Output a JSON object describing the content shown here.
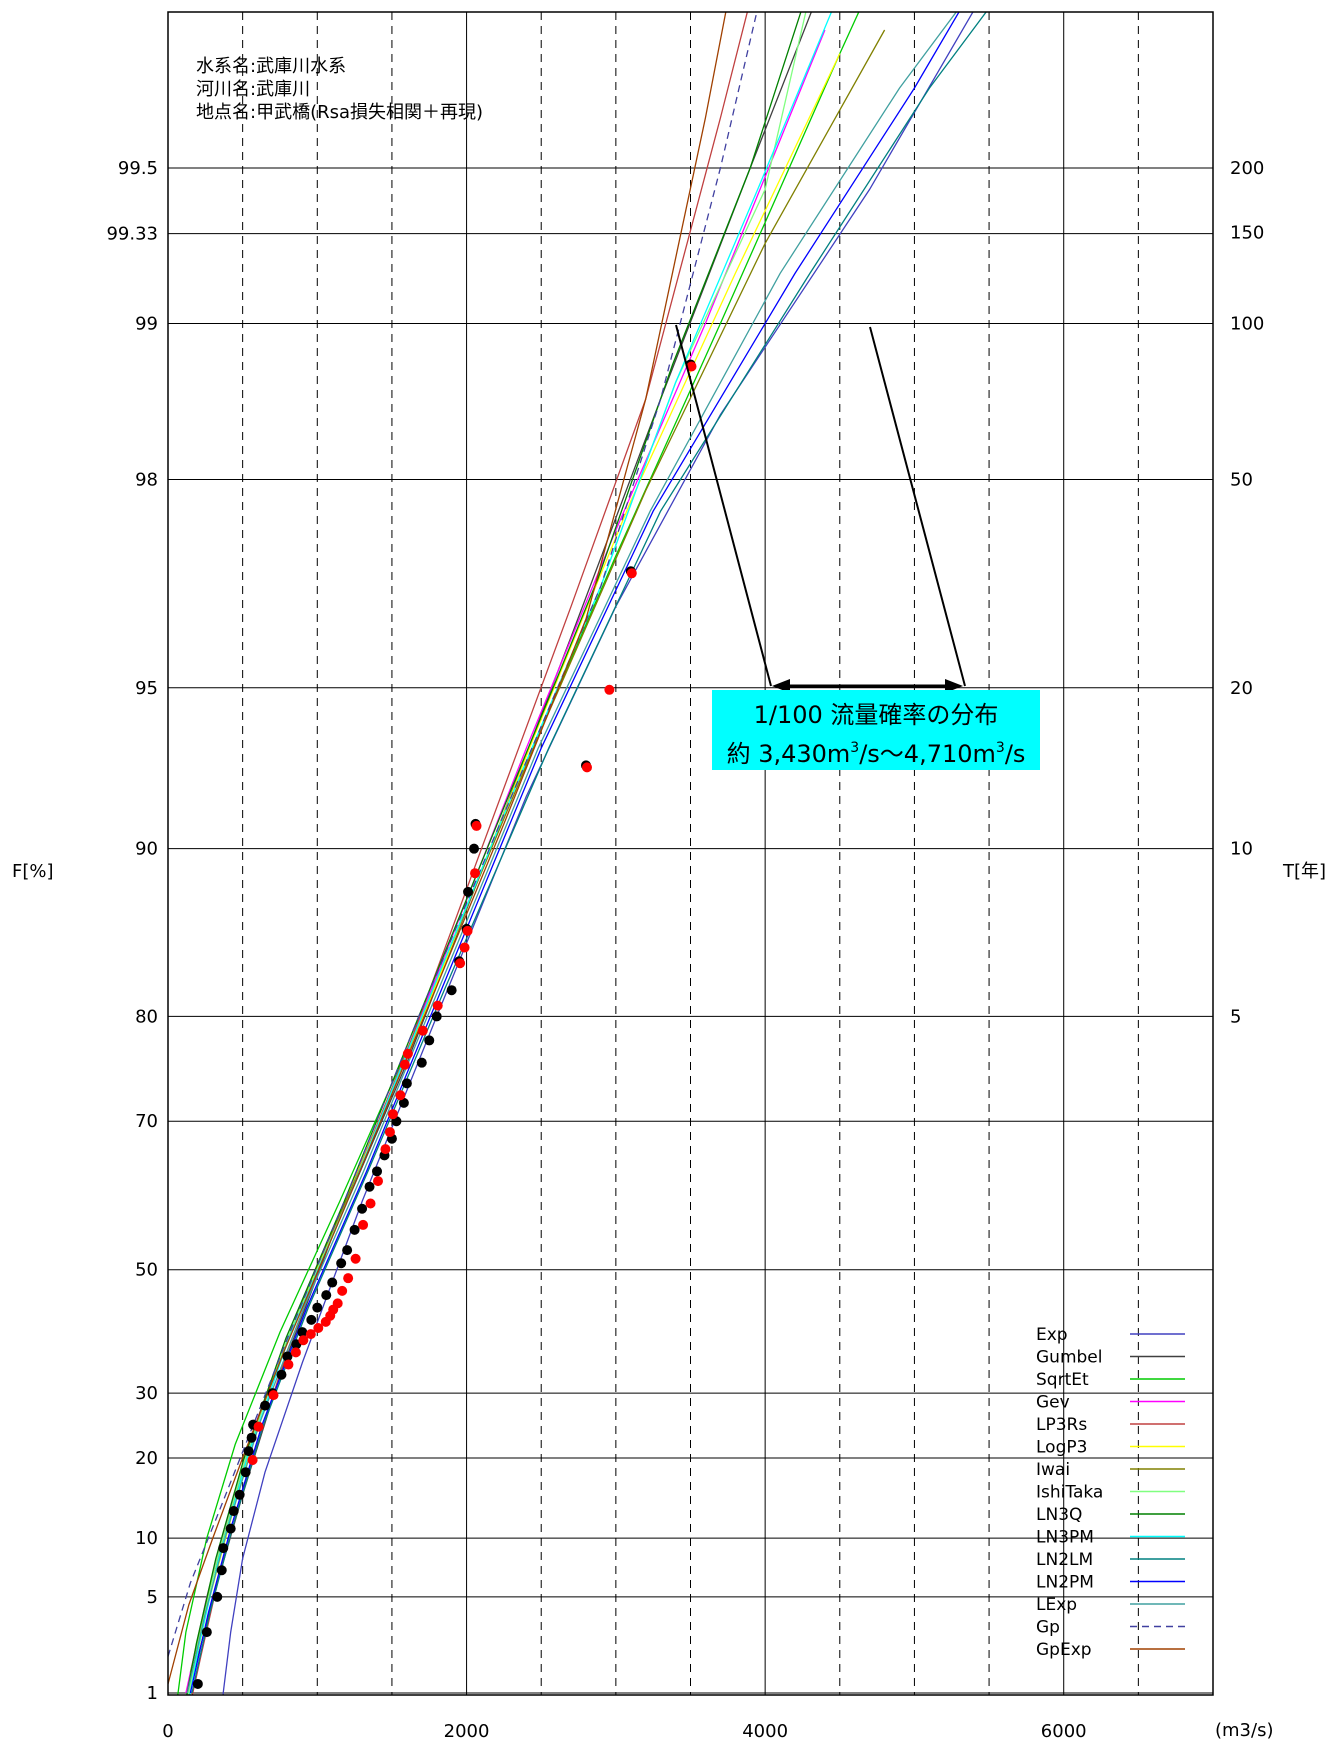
{
  "chart_data": {
    "type": "line",
    "title_lines": [
      "水系名:武庫川水系",
      "河川名:武庫川",
      "地点名:甲武橋(Rsa損失相関＋再現)"
    ],
    "xlabel": "(m3/s)",
    "ylabel_left": "F[%]",
    "ylabel_right": "T[年]",
    "xlim": [
      0,
      7000
    ],
    "x_ticks": [
      0,
      2000,
      4000,
      6000
    ],
    "x_tick_labels": [
      "0",
      "2000",
      "4000",
      "6000"
    ],
    "x_minor_gridlines": [
      500,
      1500,
      2500,
      3500,
      4500,
      5500,
      6500
    ],
    "y_ticks_F": [
      1,
      5,
      10,
      20,
      30,
      50,
      70,
      80,
      90,
      95,
      98,
      99,
      99.33,
      99.5
    ],
    "y_tick_labels_F": [
      "1",
      "5",
      "10",
      "20",
      "30",
      "50",
      "70",
      "80",
      "90",
      "95",
      "98",
      "99",
      "99.33",
      "99.5"
    ],
    "y_ticks_T": [
      5,
      10,
      20,
      50,
      100,
      150,
      200
    ],
    "y_tick_labels_T": [
      "5",
      "10",
      "20",
      "50",
      "100",
      "150",
      "200"
    ],
    "y_scale": "gumbel-probability",
    "grid": true,
    "legend_position": "bottom-right",
    "series": [
      {
        "name": "Exp",
        "color": "#4040c0",
        "dash": false,
        "points": [
          [
            360,
            0.2
          ],
          [
            370,
            1
          ],
          [
            420,
            3
          ],
          [
            500,
            8
          ],
          [
            650,
            18
          ],
          [
            900,
            35
          ],
          [
            1300,
            60
          ],
          [
            1800,
            80
          ],
          [
            2400,
            92
          ],
          [
            3000,
            96.5
          ],
          [
            3700,
            98.5
          ],
          [
            4700,
            99.45
          ],
          [
            5500,
            99.78
          ]
        ]
      },
      {
        "name": "Gumbel",
        "color": "#404040",
        "dash": false,
        "points": [
          [
            100,
            0.5
          ],
          [
            200,
            2
          ],
          [
            330,
            6
          ],
          [
            500,
            15
          ],
          [
            750,
            33
          ],
          [
            1100,
            55
          ],
          [
            1600,
            76
          ],
          [
            2100,
            89
          ],
          [
            2700,
            96
          ],
          [
            3300,
            98.6
          ],
          [
            3900,
            99.5
          ],
          [
            4500,
            99.82
          ]
        ]
      },
      {
        "name": "SqrtEt",
        "color": "#00cc00",
        "dash": false,
        "points": [
          [
            40,
            0.5
          ],
          [
            120,
            3
          ],
          [
            260,
            10
          ],
          [
            450,
            22
          ],
          [
            750,
            40
          ],
          [
            1150,
            60
          ],
          [
            1700,
            80
          ],
          [
            2300,
            92
          ],
          [
            3000,
            97.2
          ],
          [
            3700,
            99
          ],
          [
            4500,
            99.7
          ],
          [
            5600,
            99.94
          ]
        ]
      },
      {
        "name": "Gev",
        "color": "#ff00ff",
        "dash": false,
        "points": [
          [
            120,
            1
          ],
          [
            260,
            5
          ],
          [
            400,
            12
          ],
          [
            600,
            26
          ],
          [
            900,
            45
          ],
          [
            1300,
            65
          ],
          [
            1800,
            83
          ],
          [
            2400,
            93.5
          ],
          [
            3000,
            97.5
          ],
          [
            3600,
            99
          ],
          [
            4400,
            99.73
          ]
        ]
      },
      {
        "name": "LP3Rs",
        "color": "#c04040",
        "dash": false,
        "points": [
          [
            120,
            0.5
          ],
          [
            220,
            2
          ],
          [
            350,
            7
          ],
          [
            540,
            18
          ],
          [
            800,
            37
          ],
          [
            1150,
            58
          ],
          [
            1600,
            77
          ],
          [
            2100,
            90
          ],
          [
            2700,
            96.5
          ],
          [
            3200,
            98.6
          ],
          [
            3700,
            99.6
          ],
          [
            4100,
            99.86
          ]
        ]
      },
      {
        "name": "LogP3",
        "color": "#ffff00",
        "dash": false,
        "points": [
          [
            140,
            1
          ],
          [
            280,
            5
          ],
          [
            420,
            12
          ],
          [
            620,
            27
          ],
          [
            920,
            46
          ],
          [
            1320,
            66
          ],
          [
            1820,
            83
          ],
          [
            2450,
            93.8
          ],
          [
            3100,
            97.8
          ],
          [
            3800,
            99.2
          ],
          [
            4500,
            99.7
          ]
        ]
      },
      {
        "name": "Iwai",
        "color": "#808000",
        "dash": false,
        "points": [
          [
            150,
            1.5
          ],
          [
            290,
            6
          ],
          [
            440,
            14
          ],
          [
            650,
            29
          ],
          [
            950,
            48
          ],
          [
            1350,
            67
          ],
          [
            1850,
            84
          ],
          [
            2500,
            94
          ],
          [
            3200,
            97.9
          ],
          [
            4000,
            99.3
          ],
          [
            4800,
            99.73
          ]
        ]
      },
      {
        "name": "IshiTaka",
        "color": "#80ff80",
        "dash": false,
        "points": [
          [
            100,
            0.5
          ],
          [
            200,
            2.5
          ],
          [
            330,
            8
          ],
          [
            520,
            20
          ],
          [
            800,
            39
          ],
          [
            1200,
            60
          ],
          [
            1700,
            80
          ],
          [
            2300,
            92
          ],
          [
            2900,
            96.8
          ],
          [
            3400,
            98.7
          ],
          [
            4000,
            99.45
          ],
          [
            4300,
            99.77
          ]
        ]
      },
      {
        "name": "LN3Q",
        "color": "#008000",
        "dash": false,
        "points": [
          [
            90,
            0.5
          ],
          [
            190,
            2.5
          ],
          [
            320,
            8
          ],
          [
            510,
            20
          ],
          [
            790,
            39
          ],
          [
            1180,
            60
          ],
          [
            1680,
            80
          ],
          [
            2280,
            92
          ],
          [
            2880,
            96.9
          ],
          [
            3380,
            98.8
          ],
          [
            3900,
            99.5
          ],
          [
            4300,
            99.78
          ]
        ]
      },
      {
        "name": "LN3PM",
        "color": "#00ffff",
        "dash": false,
        "points": [
          [
            110,
            0.5
          ],
          [
            210,
            2.5
          ],
          [
            340,
            8
          ],
          [
            530,
            20
          ],
          [
            810,
            39
          ],
          [
            1200,
            60
          ],
          [
            1700,
            80
          ],
          [
            2300,
            92
          ],
          [
            2900,
            96.8
          ],
          [
            3400,
            98.7
          ],
          [
            3950,
            99.45
          ],
          [
            4550,
            99.79
          ]
        ]
      },
      {
        "name": "LN2LM",
        "color": "#008080",
        "dash": false,
        "points": [
          [
            160,
            1
          ],
          [
            280,
            4
          ],
          [
            430,
            11
          ],
          [
            640,
            25
          ],
          [
            940,
            44
          ],
          [
            1340,
            64
          ],
          [
            1850,
            82
          ],
          [
            2550,
            93.5
          ],
          [
            3300,
            97.7
          ],
          [
            4300,
            99.2
          ],
          [
            5100,
            99.65
          ],
          [
            6500,
            99.9
          ]
        ]
      },
      {
        "name": "LN2PM",
        "color": "#0000ff",
        "dash": false,
        "points": [
          [
            150,
            1
          ],
          [
            270,
            4
          ],
          [
            420,
            11
          ],
          [
            630,
            25
          ],
          [
            930,
            44
          ],
          [
            1330,
            64
          ],
          [
            1830,
            82
          ],
          [
            2500,
            93.5
          ],
          [
            3250,
            97.7
          ],
          [
            4200,
            99.2
          ],
          [
            5000,
            99.65
          ],
          [
            6100,
            99.9
          ]
        ]
      },
      {
        "name": "LExp",
        "color": "#40a0a0",
        "dash": false,
        "points": [
          [
            130,
            1
          ],
          [
            250,
            4
          ],
          [
            400,
            11
          ],
          [
            610,
            25
          ],
          [
            910,
            44
          ],
          [
            1310,
            64
          ],
          [
            1810,
            82
          ],
          [
            2480,
            93.5
          ],
          [
            3230,
            97.7
          ],
          [
            4100,
            99.2
          ],
          [
            4900,
            99.65
          ],
          [
            6300,
            99.9
          ]
        ]
      },
      {
        "name": "Gp",
        "color": "#4040a0",
        "dash": true,
        "points": [
          [
            0,
            2
          ],
          [
            150,
            6
          ],
          [
            320,
            12
          ],
          [
            520,
            22
          ],
          [
            800,
            39
          ],
          [
            1180,
            60
          ],
          [
            1680,
            80
          ],
          [
            2300,
            92
          ],
          [
            2900,
            96.8
          ],
          [
            3300,
            98.6
          ],
          [
            3700,
            99.5
          ],
          [
            4200,
            99.88
          ]
        ]
      },
      {
        "name": "GpExp",
        "color": "#a04000",
        "dash": false,
        "points": [
          [
            0,
            1.2
          ],
          [
            140,
            4.5
          ],
          [
            300,
            10
          ],
          [
            500,
            20
          ],
          [
            780,
            37
          ],
          [
            1160,
            58
          ],
          [
            1650,
            78
          ],
          [
            2250,
            91
          ],
          [
            2800,
            96.3
          ],
          [
            3200,
            98.6
          ],
          [
            3600,
            99.6
          ],
          [
            4000,
            99.9
          ]
        ]
      }
    ],
    "scatter_black": [
      [
        200,
        1.2
      ],
      [
        260,
        3
      ],
      [
        330,
        5
      ],
      [
        360,
        7
      ],
      [
        370,
        9
      ],
      [
        420,
        11
      ],
      [
        440,
        13
      ],
      [
        480,
        15
      ],
      [
        520,
        18
      ],
      [
        540,
        21
      ],
      [
        560,
        23
      ],
      [
        570,
        25
      ],
      [
        650,
        28
      ],
      [
        700,
        30
      ],
      [
        760,
        33
      ],
      [
        800,
        36
      ],
      [
        860,
        38
      ],
      [
        900,
        40
      ],
      [
        960,
        42
      ],
      [
        1000,
        44
      ],
      [
        1060,
        46
      ],
      [
        1100,
        48
      ],
      [
        1160,
        51
      ],
      [
        1200,
        53
      ],
      [
        1250,
        56
      ],
      [
        1300,
        59
      ],
      [
        1350,
        62
      ],
      [
        1400,
        64
      ],
      [
        1450,
        66
      ],
      [
        1500,
        68
      ],
      [
        1530,
        70
      ],
      [
        1580,
        72
      ],
      [
        1600,
        74
      ],
      [
        1700,
        76
      ],
      [
        1750,
        78
      ],
      [
        1800,
        80
      ],
      [
        1900,
        82
      ],
      [
        1950,
        84
      ],
      [
        2000,
        86
      ],
      [
        2010,
        88
      ],
      [
        2050,
        90
      ],
      [
        2060,
        91
      ],
      [
        2800,
        93
      ],
      [
        3100,
        97
      ],
      [
        3500,
        98.8
      ]
    ],
    "scatter_red": [
      [
        560,
        20
      ],
      [
        600,
        25
      ],
      [
        700,
        30
      ],
      [
        800,
        35
      ],
      [
        850,
        37
      ],
      [
        900,
        39
      ],
      [
        950,
        40
      ],
      [
        1000,
        41
      ],
      [
        1050,
        42
      ],
      [
        1080,
        43
      ],
      [
        1100,
        44
      ],
      [
        1130,
        45
      ],
      [
        1160,
        47
      ],
      [
        1200,
        49
      ],
      [
        1250,
        52
      ],
      [
        1300,
        57
      ],
      [
        1350,
        60
      ],
      [
        1400,
        63
      ],
      [
        1450,
        67
      ],
      [
        1480,
        69
      ],
      [
        1500,
        71
      ],
      [
        1550,
        73
      ],
      [
        1580,
        76
      ],
      [
        1600,
        77
      ],
      [
        1700,
        79
      ],
      [
        1800,
        81
      ],
      [
        1950,
        84
      ],
      [
        1980,
        85
      ],
      [
        2000,
        86
      ],
      [
        2050,
        89
      ],
      [
        2060,
        91
      ],
      [
        2800,
        93
      ],
      [
        2950,
        95
      ],
      [
        3100,
        97
      ],
      [
        3500,
        98.8
      ]
    ],
    "annotation": {
      "line1": "1/100 流量確率の分布",
      "line2_prefix": "約 3,430m",
      "line2_mid": "/s〜4,710m",
      "line2_suffix": "/s",
      "superscript": "3",
      "x_range": [
        3430,
        4710
      ],
      "background": "#00ffff"
    }
  }
}
